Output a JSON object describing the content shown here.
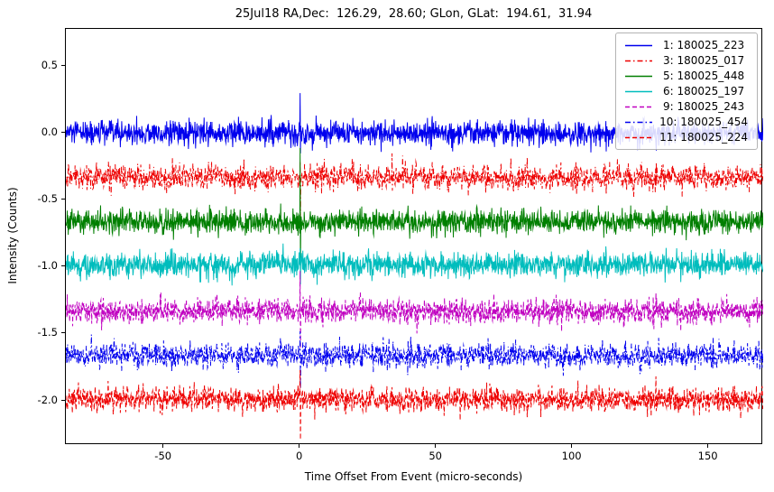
{
  "chart_data": {
    "type": "line",
    "title": "25Jul18 RA,Dec:  126.29,  28.60; GLon, GLat:  194.61,  31.94",
    "xlabel": "Time Offset From Event (micro-seconds)",
    "ylabel": "Intensity (Counts)",
    "xlim": [
      -86,
      170
    ],
    "ylim": [
      -2.33,
      0.78
    ],
    "xticks": [
      -50,
      0,
      50,
      100,
      150
    ],
    "xtick_labels": [
      "-50",
      "0",
      "50",
      "100",
      "150"
    ],
    "yticks": [
      0.5,
      0.0,
      -0.5,
      -1.0,
      -1.5,
      -2.0
    ],
    "ytick_labels": [
      "0.5",
      "0.0",
      "-0.5",
      "-1.0",
      "-1.5",
      "-2.0"
    ],
    "grid": false,
    "legend_position": "upper right",
    "series": [
      {
        "name": " 1: 180025_223",
        "color": "#0000ee",
        "linestyle": "solid",
        "baseline": 0.0,
        "noise_std": 0.045,
        "spike_t": 0,
        "spike_up": 0.3,
        "spike_down": 0.15
      },
      {
        "name": " 3: 180025_017",
        "color": "#ee0000",
        "linestyle": "dashdot",
        "baseline": -0.33,
        "noise_std": 0.045,
        "spike_t": 0,
        "spike_up": 0.12,
        "spike_down": 0.3
      },
      {
        "name": " 5: 180025_448",
        "color": "#007f00",
        "linestyle": "solid",
        "baseline": -0.66,
        "noise_std": 0.045,
        "spike_t": 0,
        "spike_up": 0.55,
        "spike_down": 0.38
      },
      {
        "name": " 6: 180025_197",
        "color": "#00bdbd",
        "linestyle": "solid",
        "baseline": -0.98,
        "noise_std": 0.045,
        "spike_t": 0,
        "spike_up": 0.12,
        "spike_down": 0.15
      },
      {
        "name": " 9: 180025_243",
        "color": "#c000c0",
        "linestyle": "dashed",
        "baseline": -1.33,
        "noise_std": 0.045,
        "spike_t": 0,
        "spike_up": 0.3,
        "spike_down": 0.28
      },
      {
        "name": "10: 180025_454",
        "color": "#0000ee",
        "linestyle": "dashdot",
        "baseline": -1.66,
        "noise_std": 0.045,
        "spike_t": 0,
        "spike_up": 0.18,
        "spike_down": 0.25
      },
      {
        "name": "11: 180025_224",
        "color": "#ee0000",
        "linestyle": "dashed",
        "baseline": -1.99,
        "noise_std": 0.045,
        "spike_t": 0,
        "spike_up": 0.22,
        "spike_down": 0.3
      }
    ]
  }
}
